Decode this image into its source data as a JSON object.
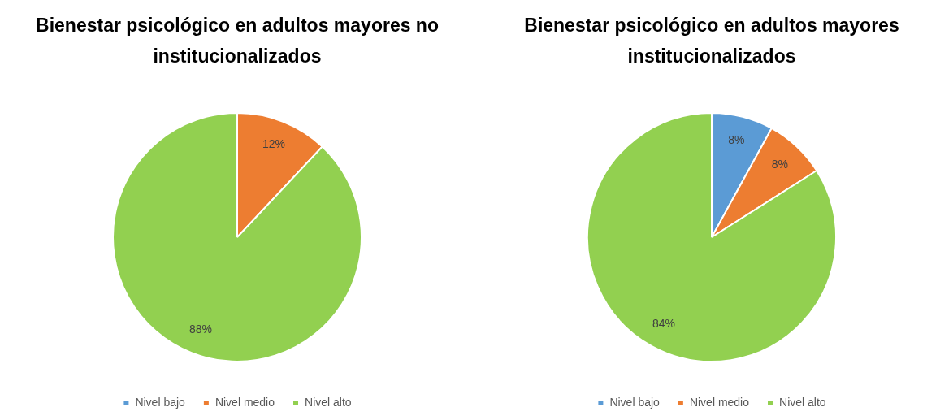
{
  "chart_data": [
    {
      "type": "pie",
      "title": "Bienestar psicológico en adultos mayores no institucionalizados",
      "categories": [
        "Nivel bajo",
        "Nivel medio",
        "Nivel alto"
      ],
      "values": [
        0,
        12,
        88
      ],
      "colors": [
        "#5b9bd5",
        "#ed7d31",
        "#92d050"
      ],
      "value_labels": [
        null,
        "12%",
        "88%"
      ],
      "legend": "bottom"
    },
    {
      "type": "pie",
      "title": "Bienestar psicológico en adultos mayores institucionalizados",
      "categories": [
        "Nivel bajo",
        "Nivel medio",
        "Nivel alto"
      ],
      "values": [
        8,
        8,
        84
      ],
      "colors": [
        "#5b9bd5",
        "#ed7d31",
        "#92d050"
      ],
      "value_labels": [
        "8%",
        "8%",
        "84%"
      ],
      "legend": "bottom"
    }
  ]
}
